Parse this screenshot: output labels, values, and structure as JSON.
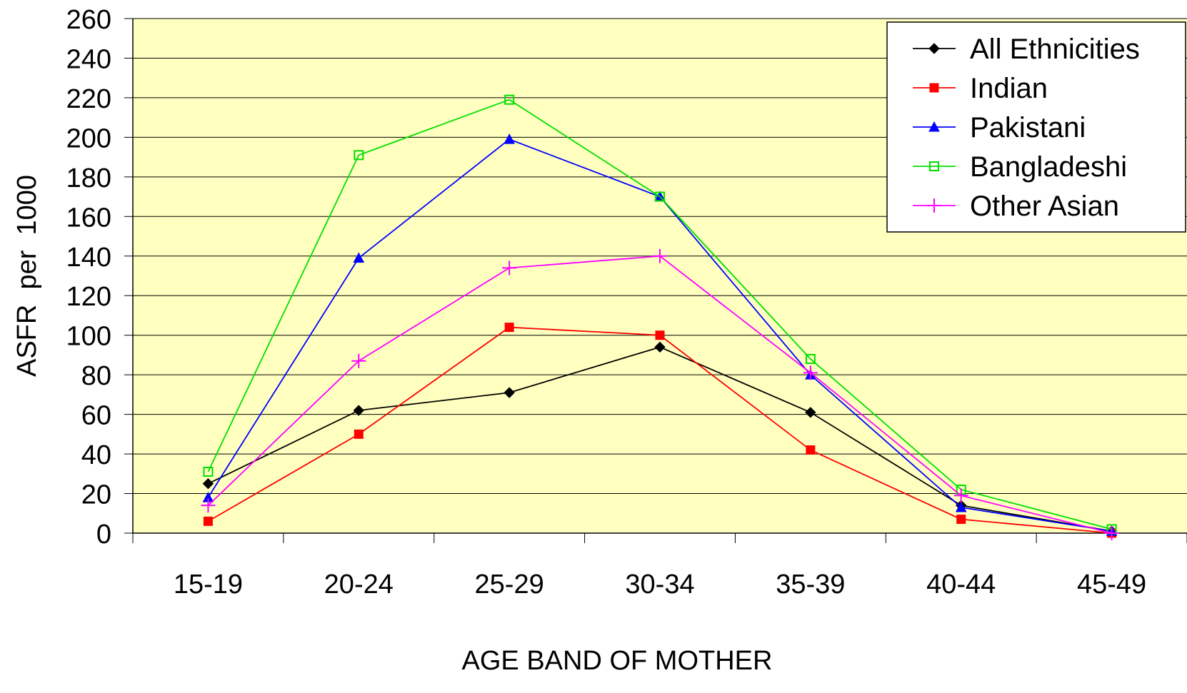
{
  "chart_data": {
    "type": "line",
    "title": "",
    "xlabel": "AGE BAND OF MOTHER",
    "ylabel": "ASFR  per  1000",
    "categories": [
      "15-19",
      "20-24",
      "25-29",
      "30-34",
      "35-39",
      "40-44",
      "45-49"
    ],
    "ylim": [
      0,
      260
    ],
    "yticks": [
      "0",
      "20",
      "40",
      "60",
      "80",
      "100",
      "120",
      "140",
      "160",
      "180",
      "200",
      "220",
      "240",
      "260"
    ],
    "grid": true,
    "legend_position": "top-right",
    "plot_background": "#FFFFC0",
    "series": [
      {
        "name": "All Ethnicities",
        "color": "#000000",
        "marker": "diamond",
        "values": [
          25,
          62,
          71,
          94,
          61,
          14,
          1
        ]
      },
      {
        "name": "Indian",
        "color": "#FF0000",
        "marker": "square",
        "values": [
          6,
          50,
          104,
          100,
          42,
          7,
          0
        ]
      },
      {
        "name": "Pakistani",
        "color": "#0000FF",
        "marker": "triangle",
        "values": [
          18,
          139,
          199,
          170,
          80,
          13,
          1
        ]
      },
      {
        "name": "Bangladeshi",
        "color": "#00E000",
        "marker": "square-open",
        "values": [
          31,
          191,
          219,
          170,
          88,
          22,
          2
        ]
      },
      {
        "name": "Other Asian",
        "color": "#FF00FF",
        "marker": "plus",
        "values": [
          14,
          87,
          134,
          140,
          81,
          19,
          0
        ]
      }
    ]
  }
}
